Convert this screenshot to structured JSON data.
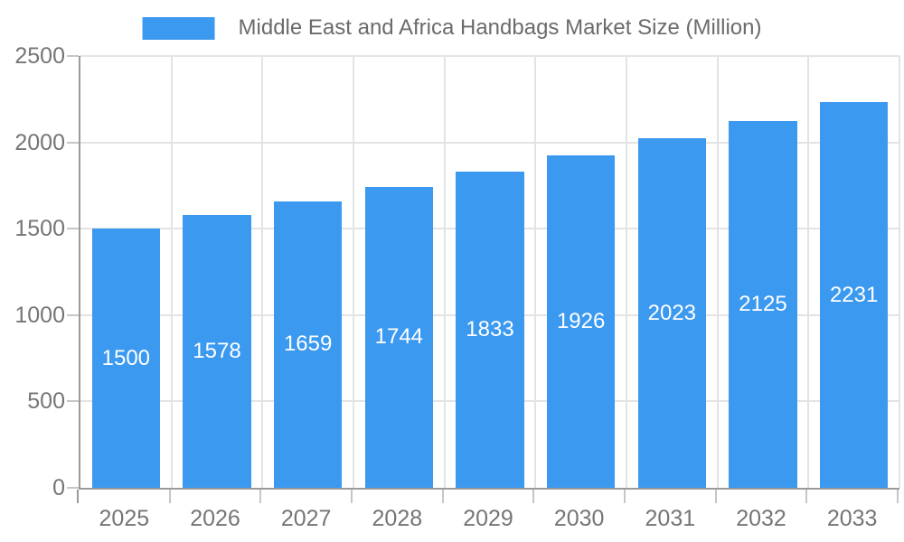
{
  "legend": {
    "swatch": "bar-color-swatch"
  },
  "chart_data": {
    "type": "bar",
    "title": "Middle East and Africa Handbags Market Size (Million)",
    "categories": [
      "2025",
      "2026",
      "2027",
      "2028",
      "2029",
      "2030",
      "2031",
      "2032",
      "2033"
    ],
    "values": [
      1500,
      1578,
      1659,
      1744,
      1833,
      1926,
      2023,
      2125,
      2231
    ],
    "series_name": "Middle East and Africa Handbags Market Size (Million)",
    "xlabel": "",
    "ylabel": "",
    "ylim": [
      0,
      2500
    ],
    "yticks": [
      0,
      500,
      1000,
      1500,
      2000,
      2500
    ],
    "grid": true,
    "legend_position": "top-center",
    "value_labels": "inside-middle-white",
    "bar_width_fraction": 0.75
  },
  "colors": {
    "bar": "#3B99F0",
    "grid": "#E3E3E3",
    "axis": "#9A9A9A",
    "tick_mark": "#C6C6C6",
    "tick_label": "#757575",
    "legend_label": "#6B6B6B",
    "value_label": "#FFFFFF",
    "background": "#FFFFFF"
  }
}
